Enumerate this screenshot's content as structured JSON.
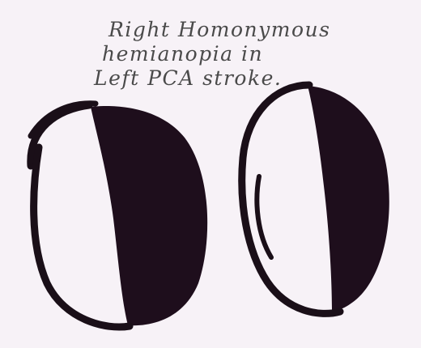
{
  "caption": {
    "line1": "Right Homonymous",
    "line2": "hemianopia in",
    "line3": "Left PCA stroke."
  },
  "colors": {
    "background": "#f7f2f7",
    "ink": "#1a0f18",
    "field_defect_fill": "#1e0e1c",
    "text": "#4a4a4a"
  },
  "diagram": {
    "left_eye": {
      "visual_field_lost": "right half"
    },
    "right_eye": {
      "visual_field_lost": "right half"
    }
  }
}
